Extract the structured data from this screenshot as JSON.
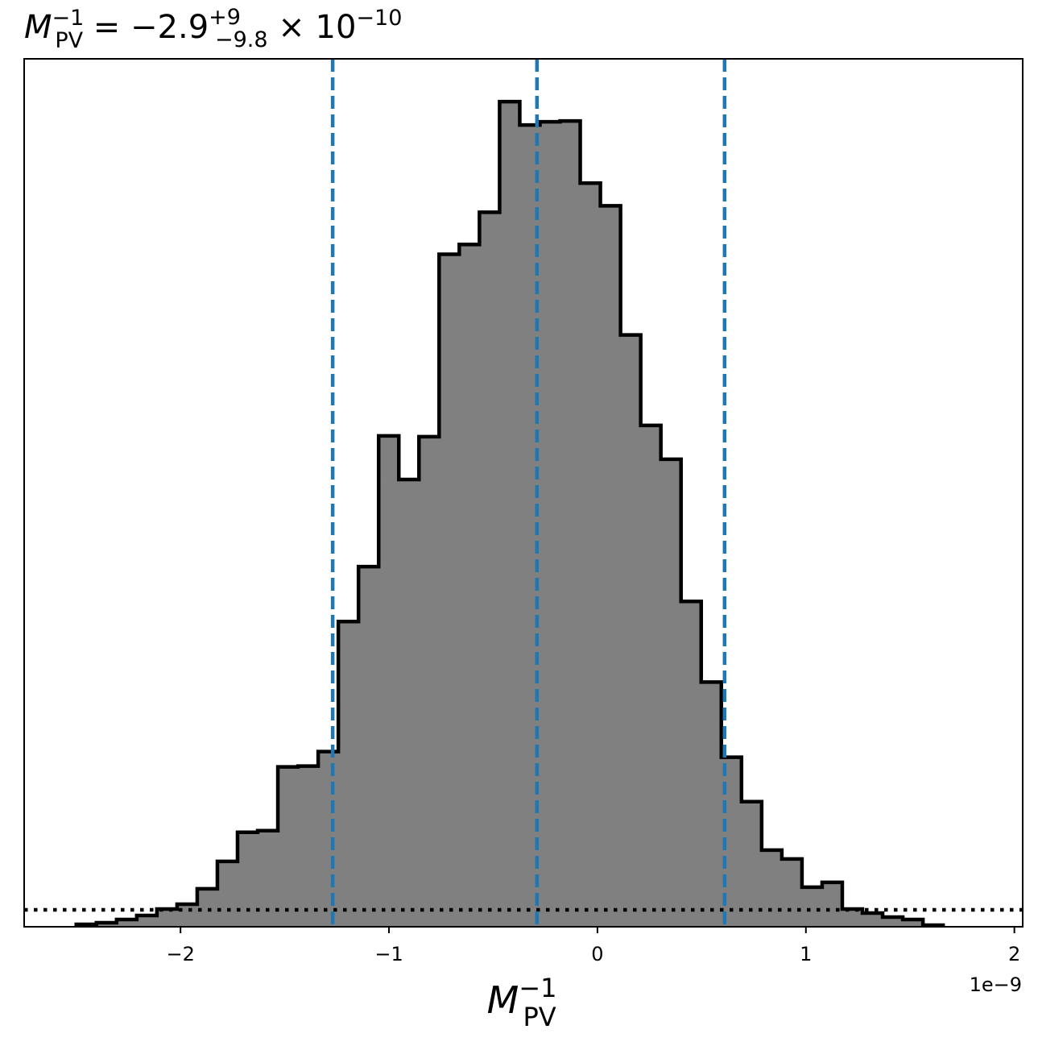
{
  "chart_data": {
    "type": "histogram",
    "title": {
      "symbol": "M",
      "symbol_subscript": "PV",
      "symbol_superscript": "−1",
      "equals": " = −2.9",
      "upper_err": "+9",
      "lower_err": "−9.8",
      "times": "× 10",
      "exponent": "−10"
    },
    "xlabel": {
      "symbol": "M",
      "subscript": "PV",
      "superscript": "−1"
    },
    "x_offset_label": "1e−9",
    "x_ticks": [
      {
        "value": -2,
        "label": "−2"
      },
      {
        "value": -1,
        "label": "−1"
      },
      {
        "value": 0,
        "label": "0"
      },
      {
        "value": 1,
        "label": "1"
      },
      {
        "value": 2,
        "label": "2"
      }
    ],
    "xlim": [
      -2.75,
      2.04
    ],
    "ylim": [
      0,
      1.075
    ],
    "y_ticks_visible": false,
    "bin_width": 0.0967,
    "bin_start": -2.5,
    "counts": [
      0.003,
      0.005,
      0.009,
      0.014,
      0.022,
      0.028,
      0.047,
      0.081,
      0.117,
      0.119,
      0.198,
      0.199,
      0.217,
      0.378,
      0.446,
      0.608,
      0.554,
      0.607,
      0.833,
      0.845,
      0.885,
      1.022,
      0.993,
      0.997,
      0.998,
      0.921,
      0.893,
      0.733,
      0.621,
      0.579,
      0.403,
      0.303,
      0.21,
      0.155,
      0.095,
      0.084,
      0.049,
      0.055,
      0.022,
      0.017,
      0.012,
      0.009,
      0.002
    ],
    "hist_fill": "#808080",
    "hist_edge": "#000000",
    "vlines": [
      {
        "value": -1.27,
        "role": "lower"
      },
      {
        "value": -0.29,
        "role": "median"
      },
      {
        "value": 0.61,
        "role": "upper"
      }
    ],
    "vline_color": "#1f77b4",
    "hline": {
      "value": 0.021,
      "style": "dotted",
      "color": "#000000"
    }
  }
}
